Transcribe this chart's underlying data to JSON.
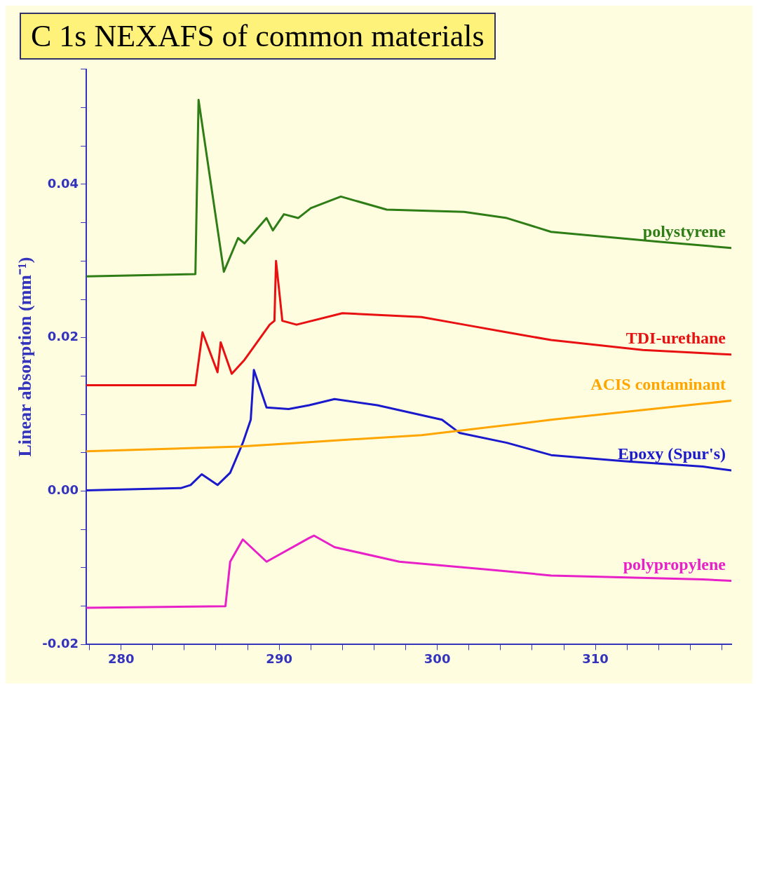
{
  "chart_data": {
    "type": "line",
    "title": "C 1s NEXAFS of common materials",
    "ylabel": "Linear absorption (mm⁻¹)",
    "xlim": [
      277.8,
      318.6
    ],
    "xticks": [
      {
        "value": 278,
        "label": null
      },
      280,
      {
        "value": 282,
        "label": null
      },
      {
        "value": 284,
        "label": null
      },
      {
        "value": 286,
        "label": null
      },
      {
        "value": 288,
        "label": null
      },
      290,
      {
        "value": 292,
        "label": null
      },
      {
        "value": 294,
        "label": null
      },
      {
        "value": 296,
        "label": null
      },
      {
        "value": 298,
        "label": null
      },
      300,
      {
        "value": 302,
        "label": null
      },
      {
        "value": 304,
        "label": null
      },
      {
        "value": 306,
        "label": null
      },
      {
        "value": 308,
        "label": null
      },
      310,
      {
        "value": 312,
        "label": null
      },
      {
        "value": 314,
        "label": null
      },
      {
        "value": 316,
        "label": null
      },
      {
        "value": 318,
        "label": null
      }
    ],
    "ylim": [
      -0.02,
      0.055
    ],
    "yticks": [
      {
        "value": -0.02,
        "label": "-0.02"
      },
      {
        "value": -0.015,
        "label": null
      },
      {
        "value": -0.01,
        "label": null
      },
      {
        "value": -0.005,
        "label": null
      },
      {
        "value": 0,
        "label": "0.00"
      },
      {
        "value": 0.005,
        "label": null
      },
      {
        "value": 0.01,
        "label": null
      },
      {
        "value": 0.015,
        "label": null
      },
      {
        "value": 0.02,
        "label": "0.02"
      },
      {
        "value": 0.025,
        "label": null
      },
      {
        "value": 0.03,
        "label": null
      },
      {
        "value": 0.035,
        "label": null
      },
      {
        "value": 0.04,
        "label": "0.04"
      },
      {
        "value": 0.045,
        "label": null
      },
      {
        "value": 0.05,
        "label": null
      },
      {
        "value": 0.055,
        "label": null
      }
    ],
    "grid": false,
    "legend": false,
    "marker": "none",
    "line_style": "solid",
    "series": [
      {
        "name": "polystyrene",
        "color": "#2e7d16",
        "x": [
          277.8,
          284.7,
          284.9,
          286.5,
          287.4,
          287.8,
          289.2,
          289.6,
          290.3,
          291.2,
          292.0,
          293.9,
          296.8,
          301.7,
          304.4,
          307.2,
          314.1,
          318.6
        ],
        "values": [
          0.028,
          0.0283,
          0.051,
          0.0286,
          0.033,
          0.0323,
          0.0356,
          0.034,
          0.0361,
          0.0356,
          0.0369,
          0.0384,
          0.0367,
          0.0364,
          0.0356,
          0.0338,
          0.0325,
          0.0317
        ]
      },
      {
        "name": "TDI-urethane",
        "color": "#e81010",
        "x": [
          277.8,
          284.7,
          285.15,
          286.1,
          286.3,
          287.0,
          287.8,
          289.4,
          289.7,
          289.8,
          290.2,
          291.1,
          294.0,
          299.0,
          301.7,
          304.4,
          307.2,
          313.0,
          318.6
        ],
        "values": [
          0.0138,
          0.0138,
          0.0207,
          0.0155,
          0.0194,
          0.0153,
          0.0171,
          0.0217,
          0.0222,
          0.03,
          0.0222,
          0.0217,
          0.0232,
          0.0227,
          0.0217,
          0.0207,
          0.0197,
          0.0184,
          0.0178
        ]
      },
      {
        "name": "ACIS contaminant",
        "color": "#ffa500",
        "x": [
          277.8,
          287.5,
          291.2,
          299.0,
          307.2,
          316.8,
          318.6
        ],
        "values": [
          0.0052,
          0.0058,
          0.0063,
          0.0073,
          0.0093,
          0.0114,
          0.0118
        ]
      },
      {
        "name": "Epoxy (Spur's)",
        "color": "#1a1acc",
        "x": [
          277.8,
          283.8,
          284.4,
          285.1,
          286.1,
          286.9,
          287.7,
          288.2,
          288.4,
          289.2,
          290.6,
          291.9,
          293.5,
          296.2,
          300.3,
          301.4,
          304.4,
          307.2,
          311.9,
          316.8,
          318.6
        ],
        "values": [
          0.0001,
          0.0004,
          0.0008,
          0.0022,
          0.0008,
          0.0024,
          0.0063,
          0.0093,
          0.0158,
          0.0109,
          0.0107,
          0.0112,
          0.012,
          0.0112,
          0.0093,
          0.0076,
          0.0063,
          0.0047,
          0.0039,
          0.0032,
          0.0027
        ]
      },
      {
        "name": "polypropylene",
        "color": "#e820c8",
        "x": [
          277.8,
          286.6,
          286.9,
          287.7,
          289.2,
          291.9,
          292.2,
          293.5,
          297.6,
          303.1,
          307.2,
          316.8,
          318.6
        ],
        "values": [
          -0.0152,
          -0.015,
          -0.0092,
          -0.0063,
          -0.0092,
          -0.0061,
          -0.0058,
          -0.0073,
          -0.0092,
          -0.0102,
          -0.011,
          -0.0115,
          -0.0117
        ]
      }
    ]
  }
}
